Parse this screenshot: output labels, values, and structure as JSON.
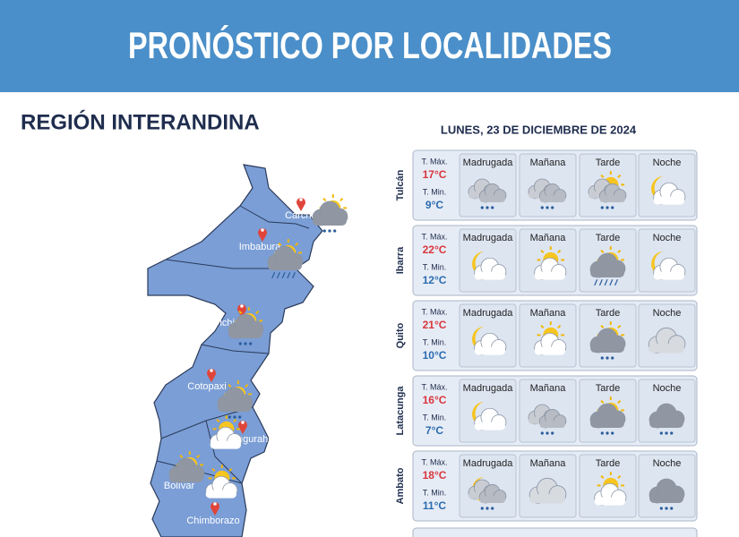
{
  "header": {
    "title": "PRONÓSTICO POR LOCALIDADES"
  },
  "region": {
    "title": "REGIÓN INTERANDINA"
  },
  "forecast": {
    "date": "LUNES, 23 DE DICIEMBRE DE 2024",
    "periods": [
      "Madrugada",
      "Mañana",
      "Tarde",
      "Noche"
    ],
    "max_label": "T. Máx.",
    "min_label": "T. Min.",
    "locations": [
      {
        "name": "Tulcán",
        "max": "17°C",
        "min": "9°C"
      },
      {
        "name": "Ibarra",
        "max": "22°C",
        "min": "12°C"
      },
      {
        "name": "Quito",
        "max": "21°C",
        "min": "10°C"
      },
      {
        "name": "Latacunga",
        "max": "16°C",
        "min": "7°C"
      },
      {
        "name": "Ambato",
        "max": "18°C",
        "min": "11°C"
      }
    ]
  },
  "map": {
    "labels": [
      "Carchi",
      "Imbabura",
      "Pichincha",
      "Cotopaxi",
      "Tungurahua",
      "Bolívar",
      "Chimborazo"
    ]
  }
}
